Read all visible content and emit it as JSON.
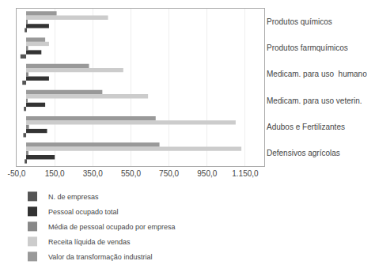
{
  "chart_data": {
    "type": "bar",
    "orientation": "horizontal",
    "categories": [
      "Defensivos agrícolas",
      "Adubos e Fertilizantes",
      "Medicam. para uso veterin.",
      "Medicam. para uso  humano",
      "Produtos farmquímicos",
      "Produtos químicos"
    ],
    "series": [
      {
        "name": "N. de empresas",
        "color": "#555555",
        "values": [
          -8,
          -15,
          -12,
          -20,
          -30,
          -8
        ]
      },
      {
        "name": "Pessoal ocupado total",
        "color": "#333333",
        "values": [
          150,
          110,
          100,
          120,
          80,
          120
        ]
      },
      {
        "name": "Média de pessoal ocupado por empresa",
        "color": "#888888",
        "values": [
          12,
          15,
          8,
          12,
          10,
          7
        ]
      },
      {
        "name": "Receita líquida de vendas",
        "color": "#cccccc",
        "values": [
          1130,
          1100,
          640,
          510,
          120,
          430
        ]
      },
      {
        "name": "Valor da transformação industrial",
        "color": "#999999",
        "values": [
          700,
          680,
          400,
          330,
          100,
          160
        ]
      }
    ],
    "xlim": [
      -50,
      1250
    ],
    "xticks": [
      {
        "value": -50,
        "label": "-50,0"
      },
      {
        "value": 150,
        "label": "150,0"
      },
      {
        "value": 350,
        "label": "350,0"
      },
      {
        "value": 550,
        "label": "550,0"
      },
      {
        "value": 750,
        "label": "750,0"
      },
      {
        "value": 950,
        "label": "950,0"
      },
      {
        "value": 1150,
        "label": "1.150,0"
      }
    ],
    "grid": true,
    "legend": "bottom"
  }
}
